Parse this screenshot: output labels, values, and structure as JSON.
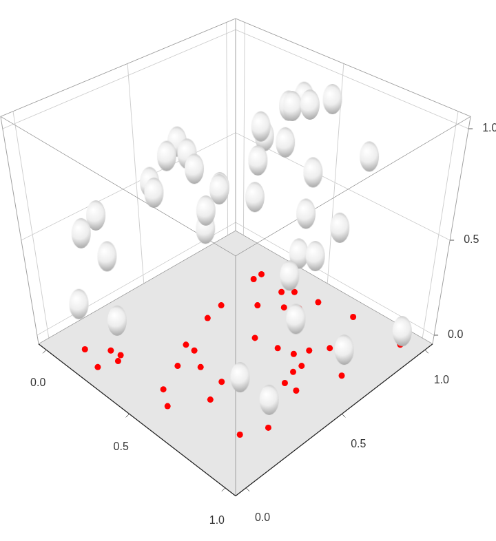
{
  "chart_data": {
    "type": "scatter3d",
    "x": [
      0.26,
      0.26,
      0.41,
      0.45,
      0.29,
      0.4,
      0.49,
      0.54,
      0.57,
      0.74,
      0.31,
      0.54,
      0.1,
      0.18,
      0.23,
      0.25,
      0.22,
      0.37,
      0.42,
      0.44,
      0.51,
      0.5,
      0.58,
      0.63,
      0.67,
      0.88,
      0.93,
      0.65,
      0.72,
      0.75,
      0.8,
      0.79,
      0.79,
      0.81,
      0.87,
      0.94,
      0.99
    ],
    "y": [
      0.85,
      0.9,
      0.87,
      0.91,
      0.62,
      0.73,
      0.8,
      0.84,
      0.93,
      0.96,
      0.52,
      0.57,
      0.03,
      0.1,
      0.11,
      0.08,
      0.0,
      0.34,
      0.34,
      0.23,
      0.29,
      0.1,
      0.05,
      0.29,
      0.19,
      0.14,
      0.24,
      0.59,
      0.61,
      0.67,
      0.74,
      0.58,
      0.53,
      0.46,
      0.46,
      0.65,
      0.96
    ],
    "z": [
      0.42,
      0.71,
      0.93,
      0.97,
      0.6,
      0.89,
      0.99,
      1.0,
      1.0,
      0.8,
      0.45,
      0.87,
      0.21,
      0.67,
      0.15,
      0.52,
      0.66,
      0.98,
      0.95,
      1.0,
      0.95,
      0.98,
      1.0,
      0.92,
      0.9,
      0.27,
      0.11,
      0.99,
      0.5,
      0.47,
      0.6,
      0.93,
      0.25,
      0.53,
      0.85,
      0.1,
      0.03
    ],
    "xlim": [
      -0.05,
      1.05
    ],
    "ylim": [
      -0.05,
      1.05
    ],
    "zlim": [
      -0.05,
      1.05
    ],
    "xticks": [
      {
        "value": 0,
        "label": "0.0"
      },
      {
        "value": 0.5,
        "label": "0.5"
      },
      {
        "value": 1,
        "label": "1.0"
      }
    ],
    "yticks": [
      {
        "value": 0,
        "label": "0.0"
      },
      {
        "value": 0.5,
        "label": "0.5"
      },
      {
        "value": 1,
        "label": "1.0"
      }
    ],
    "zticks": [
      {
        "value": 0,
        "label": "0.0"
      },
      {
        "value": 0.5,
        "label": "0.5"
      },
      {
        "value": 1,
        "label": "1.0"
      }
    ],
    "marker": "ellipsoid",
    "color": "#ff0000",
    "grid": true
  }
}
